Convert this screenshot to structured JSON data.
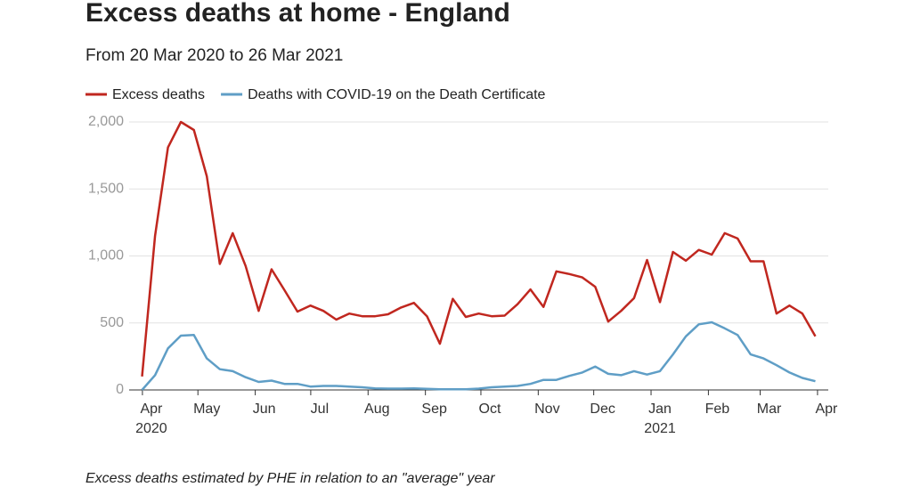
{
  "chart_data": {
    "type": "line",
    "title": "Excess deaths at home - England",
    "subtitle": "From 20 Mar 2020 to 26 Mar 2021",
    "note": "Excess deaths estimated by PHE in relation to an \"average\" year",
    "x": [
      "2020-03-27",
      "2020-04-03",
      "2020-04-10",
      "2020-04-17",
      "2020-04-24",
      "2020-05-01",
      "2020-05-08",
      "2020-05-15",
      "2020-05-22",
      "2020-05-29",
      "2020-06-05",
      "2020-06-12",
      "2020-06-19",
      "2020-06-26",
      "2020-07-03",
      "2020-07-10",
      "2020-07-17",
      "2020-07-24",
      "2020-07-31",
      "2020-08-07",
      "2020-08-14",
      "2020-08-21",
      "2020-08-28",
      "2020-09-04",
      "2020-09-11",
      "2020-09-18",
      "2020-09-25",
      "2020-10-02",
      "2020-10-09",
      "2020-10-16",
      "2020-10-23",
      "2020-10-30",
      "2020-11-06",
      "2020-11-13",
      "2020-11-20",
      "2020-11-27",
      "2020-12-04",
      "2020-12-11",
      "2020-12-18",
      "2020-12-25",
      "2021-01-01",
      "2021-01-08",
      "2021-01-15",
      "2021-01-22",
      "2021-01-29",
      "2021-02-05",
      "2021-02-12",
      "2021-02-19",
      "2021-02-26",
      "2021-03-05",
      "2021-03-12",
      "2021-03-19",
      "2021-03-26"
    ],
    "series": [
      {
        "name": "Excess deaths",
        "color": "#c0271f",
        "values": [
          100,
          1150,
          1810,
          2000,
          1940,
          1595,
          940,
          1170,
          925,
          590,
          900,
          745,
          585,
          630,
          590,
          525,
          570,
          550,
          550,
          565,
          615,
          650,
          550,
          345,
          680,
          545,
          570,
          550,
          555,
          640,
          750,
          620,
          885,
          865,
          840,
          770,
          510,
          590,
          685,
          970,
          655,
          1030,
          965,
          1045,
          1010,
          1170,
          1130,
          960,
          960,
          570,
          630,
          570,
          400
        ]
      },
      {
        "name": "Deaths with COVID-19 on the Death Certificate",
        "color": "#5f9ec6",
        "values": [
          0,
          110,
          310,
          405,
          410,
          235,
          155,
          140,
          95,
          60,
          70,
          45,
          45,
          25,
          30,
          30,
          25,
          20,
          12,
          10,
          10,
          12,
          8,
          5,
          5,
          5,
          10,
          20,
          25,
          30,
          45,
          75,
          75,
          105,
          130,
          175,
          120,
          110,
          140,
          115,
          140,
          265,
          400,
          490,
          505,
          460,
          410,
          265,
          235,
          185,
          130,
          90,
          65
        ]
      }
    ],
    "xlim": [
      "2020-03-20",
      "2021-04-02"
    ],
    "xticks": [
      {
        "value": "2020-04-01",
        "label": "Apr"
      },
      {
        "value": "2020-05-01",
        "label": "May"
      },
      {
        "value": "2020-06-01",
        "label": "Jun"
      },
      {
        "value": "2020-07-01",
        "label": "Jul"
      },
      {
        "value": "2020-08-01",
        "label": "Aug"
      },
      {
        "value": "2020-09-01",
        "label": "Sep"
      },
      {
        "value": "2020-10-01",
        "label": "Oct"
      },
      {
        "value": "2020-11-01",
        "label": "Nov"
      },
      {
        "value": "2020-12-01",
        "label": "Dec"
      },
      {
        "value": "2021-01-01",
        "label": "Jan"
      },
      {
        "value": "2021-02-01",
        "label": "Feb"
      },
      {
        "value": "2021-03-01",
        "label": "Mar"
      },
      {
        "value": "2021-04-01",
        "label": "Apr"
      }
    ],
    "x_year_labels": [
      {
        "value": "2020-04-01",
        "label": "2020"
      },
      {
        "value": "2021-01-01",
        "label": "2021"
      }
    ],
    "ylim": [
      0,
      2000
    ],
    "yticks": [
      0,
      {
        "value": 500,
        "label": "500"
      },
      {
        "value": 1000,
        "label": "1,000"
      },
      {
        "value": 1500,
        "label": "1,500"
      },
      {
        "value": 2000,
        "label": "2,000"
      }
    ],
    "grid": true,
    "legend": "top"
  }
}
